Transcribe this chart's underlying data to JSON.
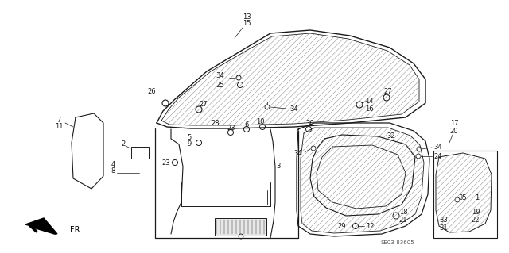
{
  "bg_color": "#ffffff",
  "line_color": "#1a1a1a",
  "text_color": "#1a1a1a",
  "diagram_ref": "SE03-83605",
  "figsize": [
    6.4,
    3.19
  ],
  "dpi": 100
}
